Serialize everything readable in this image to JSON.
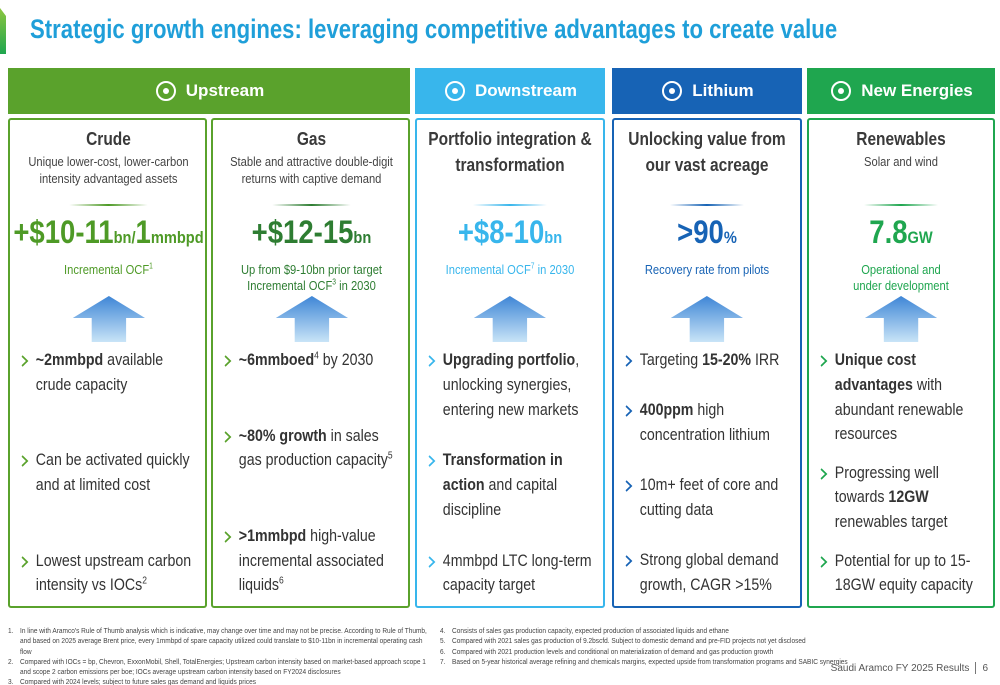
{
  "title": "Strategic growth engines: leveraging competitive advantages to create value",
  "columns": [
    {
      "name": "Upstream",
      "color": "#5aa22c",
      "panels": [
        {
          "heading": "Crude",
          "subheading": "Unique lower-cost, lower-carbon intensity advantaged assets",
          "color": "#4e9a26",
          "metric": [
            {
              "text": "+$10-11",
              "size": "big"
            },
            {
              "text": "bn/",
              "size": "small"
            },
            {
              "text": "1",
              "size": "big"
            },
            {
              "text": "mmbpd",
              "size": "small"
            }
          ],
          "note": [
            [
              {
                "text": "Incremental OCF"
              },
              {
                "text": "1",
                "style": "sup"
              }
            ]
          ],
          "bullets": [
            [
              {
                "text": "~2mmbpd",
                "style": "bold"
              },
              {
                "text": " available crude capacity"
              }
            ],
            [
              {
                "text": "Can be activated quickly and at limited cost"
              }
            ],
            [
              {
                "text": "Lowest upstream carbon intensity vs IOCs"
              },
              {
                "text": "2",
                "style": "sup"
              }
            ]
          ]
        },
        {
          "heading": "Gas",
          "subheading": "Stable and attractive double-digit returns with captive demand",
          "color": "#2e7d32",
          "metric": [
            {
              "text": "+$12-15",
              "size": "big"
            },
            {
              "text": "bn",
              "size": "small"
            }
          ],
          "note": [
            [
              {
                "text": "Up from $9-10bn prior target"
              }
            ],
            [
              {
                "text": "Incremental OCF"
              },
              {
                "text": "3",
                "style": "sup"
              },
              {
                "text": " in 2030"
              }
            ]
          ],
          "bullets": [
            [
              {
                "text": "~6mmboed",
                "style": "bold"
              },
              {
                "text": "4",
                "style": "sup"
              },
              {
                "text": " by 2030"
              }
            ],
            [
              {
                "text": "~80% growth",
                "style": "bold"
              },
              {
                "text": " in sales gas production capacity"
              },
              {
                "text": "5",
                "style": "sup"
              }
            ],
            [
              {
                "text": ">1mmbpd",
                "style": "bold"
              },
              {
                "text": " high-value incremental associated liquids"
              },
              {
                "text": "6",
                "style": "sup"
              }
            ]
          ]
        }
      ]
    },
    {
      "name": "Downstream",
      "color": "#38b6ec",
      "panels": [
        {
          "heading": "Portfolio integration & transformation",
          "color": "#38b6ec",
          "metric": [
            {
              "text": "+$8-10",
              "size": "big"
            },
            {
              "text": "bn",
              "size": "small"
            }
          ],
          "note": [
            [
              {
                "text": "Incremental OCF"
              },
              {
                "text": "7",
                "style": "sup"
              },
              {
                "text": " in 2030"
              }
            ]
          ],
          "bullets": [
            [
              {
                "text": "Upgrading portfolio",
                "style": "bold"
              },
              {
                "text": ", unlocking synergies, entering new markets"
              }
            ],
            [
              {
                "text": "Transformation in action",
                "style": "bold"
              },
              {
                "text": " and capital discipline"
              }
            ],
            [
              {
                "text": "4mmbpd LTC long-term capacity target"
              }
            ]
          ]
        }
      ]
    },
    {
      "name": "Lithium",
      "color": "#1763b5",
      "panels": [
        {
          "heading": "Unlocking value from our vast acreage",
          "color": "#1763b5",
          "metric": [
            {
              "text": ">90",
              "size": "big"
            },
            {
              "text": "%",
              "size": "small"
            }
          ],
          "note": [
            [
              {
                "text": "Recovery rate from pilots"
              }
            ]
          ],
          "bullets": [
            [
              {
                "text": "Targeting "
              },
              {
                "text": "15-20%",
                "style": "bold"
              },
              {
                "text": " IRR"
              }
            ],
            [
              {
                "text": "400ppm",
                "style": "bold"
              },
              {
                "text": " high concentration lithium"
              }
            ],
            [
              {
                "text": "10m+ feet of core and cutting data"
              }
            ],
            [
              {
                "text": "Strong global demand growth, CAGR >15%"
              }
            ]
          ]
        }
      ]
    },
    {
      "name": "New Energies",
      "color": "#1fa64f",
      "panels": [
        {
          "heading": "Renewables",
          "subheading": "Solar and wind",
          "color": "#1fa64f",
          "metric": [
            {
              "text": "7.8",
              "size": "big"
            },
            {
              "text": "GW",
              "size": "small"
            }
          ],
          "note": [
            [
              {
                "text": "Operational and"
              }
            ],
            [
              {
                "text": "under development"
              }
            ]
          ],
          "bullets": [
            [
              {
                "text": "Unique cost advantages",
                "style": "bold"
              },
              {
                "text": " with abundant renewable resources"
              }
            ],
            [
              {
                "text": "Progressing well towards "
              },
              {
                "text": "12GW",
                "style": "bold"
              },
              {
                "text": " renewables target"
              }
            ],
            [
              {
                "text": "Potential for up to 15-18GW equity capacity"
              }
            ]
          ]
        }
      ]
    }
  ],
  "footnotes": [
    [
      {
        "num": "1.",
        "text": "In line with Aramco's Rule of Thumb analysis which is indicative, may change over time and may not be precise. According to Rule of Thumb, and based on 2025 average Brent price, every 1mmbpd of spare capacity utilized could translate to $10-11bn in incremental operating cash flow"
      },
      {
        "num": "2.",
        "text": "Compared with IOCs = bp, Chevron, ExxonMobil, Shell, TotalEnergies; Upstream carbon intensity based on market-based approach scope 1 and scope 2 carbon emissions per boe; IOCs average upstream carbon intensity based on FY2024 disclosures"
      },
      {
        "num": "3.",
        "text": "Compared with 2024 levels; subject to future sales gas demand and liquids prices"
      }
    ],
    [
      {
        "num": "4.",
        "text": "Consists of sales gas production capacity, expected production of associated liquids and ethane"
      },
      {
        "num": "5.",
        "text": "Compared with 2021 sales gas production of 9.2bscfd. Subject to domestic demand and pre-FID projects not yet disclosed"
      },
      {
        "num": "6.",
        "text": "Compared with 2021 production levels and conditional on materialization of demand and gas production growth"
      },
      {
        "num": "7.",
        "text": "Based on 5-year historical average refining and chemicals margins, expected upside from transformation programs and SABIC synergies"
      }
    ]
  ],
  "footer": {
    "text": "Saudi Aramco FY 2025 Results",
    "page": "6"
  }
}
